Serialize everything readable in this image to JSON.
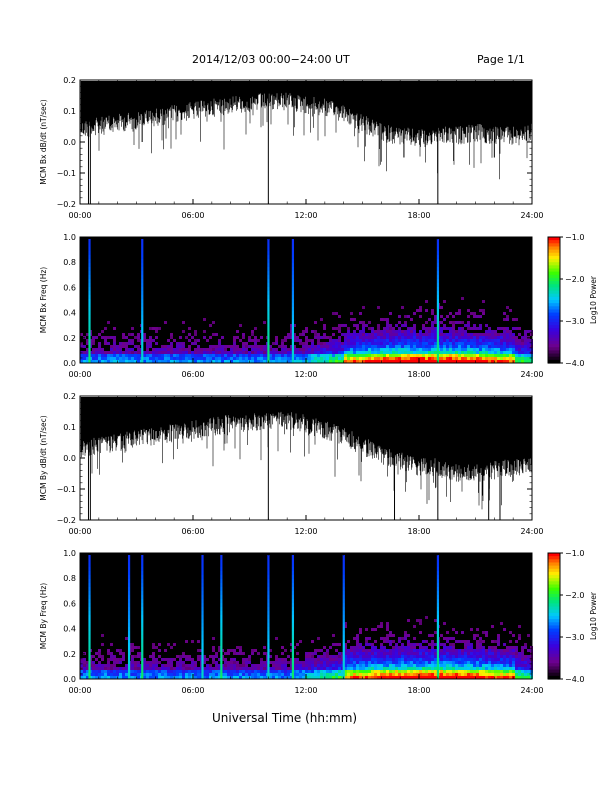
{
  "header": {
    "title": "2014/12/03  00:00−24:00 UT",
    "page": "Page 1/1"
  },
  "xaxis_label": "Universal Time (hh:mm)",
  "colors": {
    "trace": "#000000",
    "spectrogram_bg": "#000000"
  },
  "chart_data": [
    {
      "type": "line",
      "ylabel": "MCM Bx dB/dt (nT/sec)",
      "x_ticks": [
        "00:00",
        "06:00",
        "12:00",
        "18:00",
        "24:00"
      ],
      "xlim_hours": [
        0,
        24
      ],
      "ylim": [
        -0.2,
        0.2
      ],
      "y_ticks": [
        "0.2",
        "0.1",
        "0.0",
        "−0.1",
        "−0.2"
      ],
      "y_tick_values": [
        0.2,
        0.1,
        0.0,
        -0.1,
        -0.2
      ],
      "envelope_hours": [
        0,
        1,
        2,
        3,
        4,
        5,
        6,
        7,
        8,
        9,
        10,
        11,
        12,
        13,
        14,
        15,
        16,
        17,
        18,
        19,
        20,
        21,
        22,
        23,
        24
      ],
      "envelope_lower": [
        0.07,
        0.08,
        0.09,
        0.1,
        0.11,
        0.12,
        0.13,
        0.14,
        0.15,
        0.155,
        0.16,
        0.16,
        0.15,
        0.14,
        0.12,
        0.09,
        0.06,
        0.05,
        0.04,
        0.05,
        0.05,
        0.06,
        0.05,
        0.05,
        0.06
      ],
      "spikes": [
        {
          "hour": 0.45,
          "to": -0.2
        },
        {
          "hour": 0.55,
          "to": -0.2
        },
        {
          "hour": 3.3,
          "to": 0.0
        },
        {
          "hour": 10.0,
          "to": -0.2
        },
        {
          "hour": 17.2,
          "to": -0.05
        },
        {
          "hour": 19.0,
          "to": -0.2
        },
        {
          "hour": 22.0,
          "to": -0.05
        }
      ]
    },
    {
      "type": "heatmap",
      "ylabel": "MCM Bx Freq (Hz)",
      "x_ticks": [
        "00:00",
        "06:00",
        "12:00",
        "18:00",
        "24:00"
      ],
      "xlim_hours": [
        0,
        24
      ],
      "ylim": [
        0.0,
        1.0
      ],
      "y_ticks": [
        "1.0",
        "0.8",
        "0.6",
        "0.4",
        "0.2",
        "0.0"
      ],
      "y_tick_values": [
        1.0,
        0.8,
        0.6,
        0.4,
        0.2,
        0.0
      ],
      "colorbar": {
        "label": "Log10 Power",
        "ticks": [
          "−1.0",
          "−2.0",
          "−3.0",
          "−4.0"
        ],
        "range": [
          -4.0,
          -1.0
        ]
      },
      "bright_columns_hours": [
        0.5,
        3.3,
        10.0,
        11.3,
        19.0
      ]
    },
    {
      "type": "line",
      "ylabel": "MCM By dB/dt (nT/sec)",
      "x_ticks": [
        "00:00",
        "06:00",
        "12:00",
        "18:00",
        "24:00"
      ],
      "xlim_hours": [
        0,
        24
      ],
      "ylim": [
        -0.2,
        0.2
      ],
      "y_ticks": [
        "0.2",
        "0.1",
        "0.0",
        "−0.1",
        "−0.2"
      ],
      "y_tick_values": [
        0.2,
        0.1,
        0.0,
        -0.1,
        -0.2
      ],
      "envelope_hours": [
        0,
        1,
        2,
        3,
        4,
        5,
        6,
        7,
        8,
        9,
        10,
        11,
        12,
        13,
        14,
        15,
        16,
        17,
        18,
        19,
        20,
        21,
        22,
        23,
        24
      ],
      "envelope_lower": [
        0.06,
        0.07,
        0.08,
        0.09,
        0.1,
        0.11,
        0.12,
        0.13,
        0.14,
        0.145,
        0.15,
        0.15,
        0.14,
        0.12,
        0.1,
        0.07,
        0.04,
        0.02,
        0.0,
        0.0,
        -0.02,
        -0.02,
        -0.01,
        0.0,
        0.0
      ],
      "spikes": [
        {
          "hour": 0.45,
          "to": -0.2
        },
        {
          "hour": 0.55,
          "to": -0.2
        },
        {
          "hour": 10.0,
          "to": -0.2
        },
        {
          "hour": 16.7,
          "to": -0.2
        },
        {
          "hour": 19.0,
          "to": -0.2
        },
        {
          "hour": 21.7,
          "to": -0.2
        },
        {
          "hour": 22.3,
          "to": -0.2
        }
      ]
    },
    {
      "type": "heatmap",
      "ylabel": "MCM By Freq (Hz)",
      "x_ticks": [
        "00:00",
        "06:00",
        "12:00",
        "18:00",
        "24:00"
      ],
      "xlim_hours": [
        0,
        24
      ],
      "ylim": [
        0.0,
        1.0
      ],
      "y_ticks": [
        "1.0",
        "0.8",
        "0.6",
        "0.4",
        "0.2",
        "0.0"
      ],
      "y_tick_values": [
        1.0,
        0.8,
        0.6,
        0.4,
        0.2,
        0.0
      ],
      "colorbar": {
        "label": "Log10 Power",
        "ticks": [
          "−1.0",
          "−2.0",
          "−3.0",
          "−4.0"
        ],
        "range": [
          -4.0,
          -1.0
        ]
      },
      "bright_columns_hours": [
        0.5,
        2.6,
        3.3,
        6.5,
        7.5,
        10.0,
        11.3,
        14.0,
        19.0
      ]
    }
  ]
}
